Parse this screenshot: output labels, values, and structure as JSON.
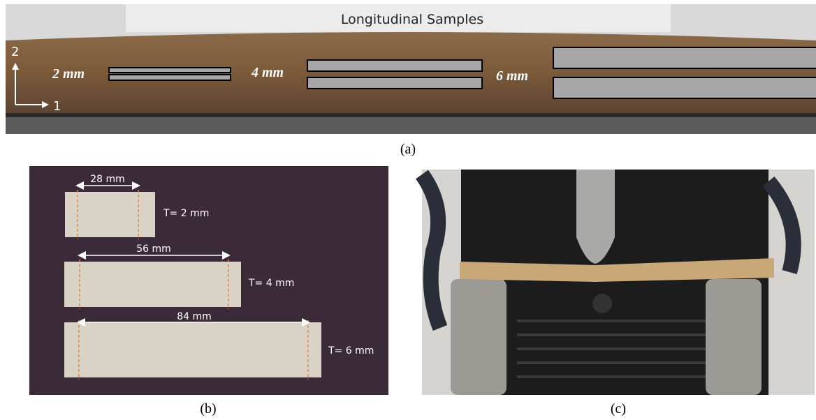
{
  "panel_a": {
    "title": "Longitudinal Samples",
    "axis_labels": [
      "2",
      "1"
    ],
    "thickness_labels": [
      "2 mm",
      "4 mm",
      "6 mm"
    ],
    "caption": "(a)"
  },
  "panel_b": {
    "widths": [
      "28 mm",
      "56 mm",
      "84 mm"
    ],
    "thicknesses": [
      "T= 2 mm",
      "T= 4 mm",
      "T= 6 mm"
    ],
    "caption": "(b)"
  },
  "panel_c": {
    "caption": "(c)"
  }
}
